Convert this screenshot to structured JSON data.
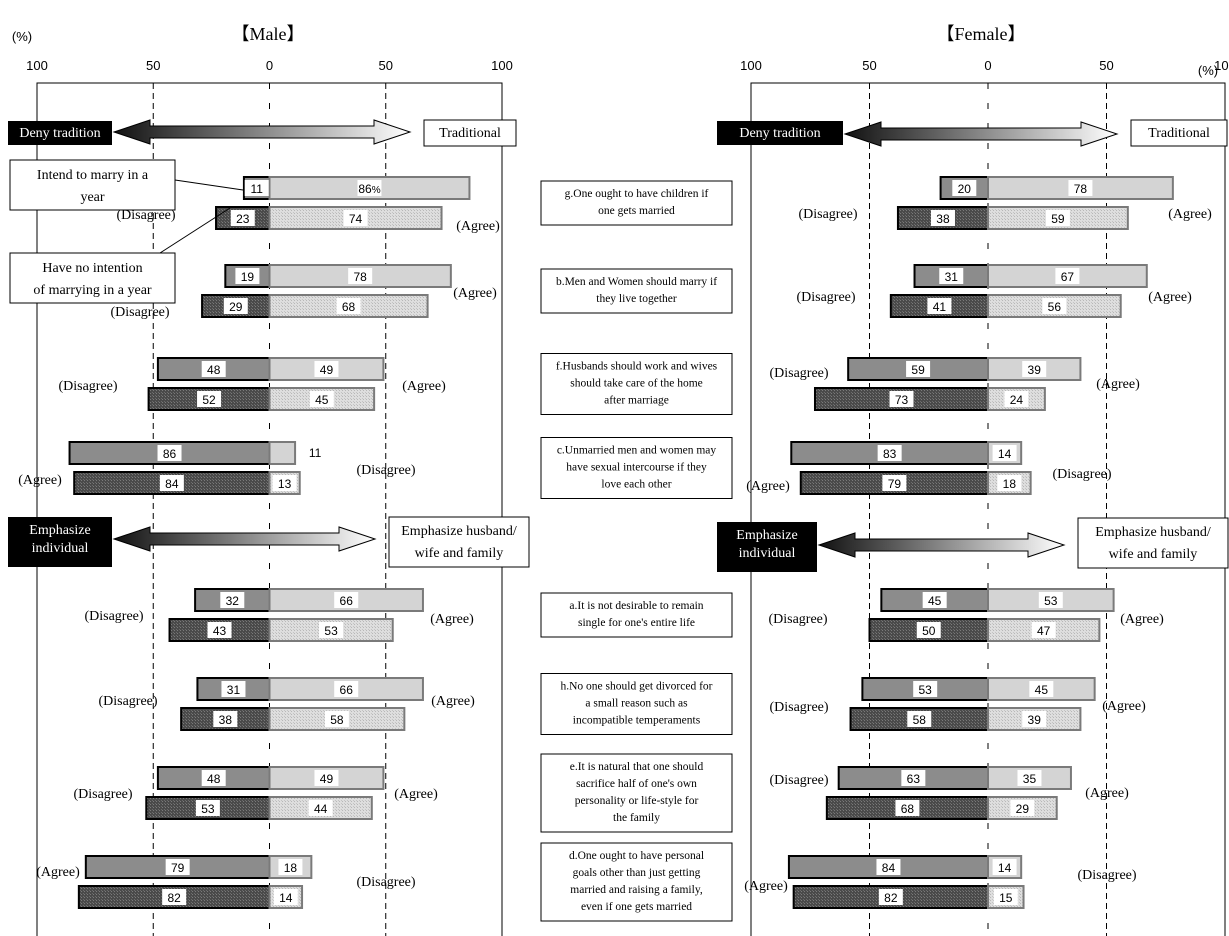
{
  "chart_data": {
    "type": "bar",
    "orientation": "horizontal-diverging",
    "unit_label": "(%)",
    "ticks": [
      "100",
      "50",
      "0",
      "50",
      "100"
    ],
    "series": [
      {
        "name": "Intend to marry in a year"
      },
      {
        "name": "Have no intention of marrying in a year"
      }
    ],
    "panels": [
      {
        "title": "【Male】",
        "percent_suffix_first": "%"
      },
      {
        "title": "【Female】"
      }
    ],
    "legend_left_label": "Deny tradition",
    "legend_right_label": "Traditional",
    "legend2_left_label": "Emphasize individual",
    "legend2_right_label": "Emphasize husband/ wife and family",
    "items": [
      {
        "label": "g.One ought to have children if one gets married",
        "left_word": "(Disagree)",
        "right_word": "(Agree)",
        "male": [
          {
            "neg": 11,
            "pos": 86
          },
          {
            "neg": 23,
            "pos": 74
          }
        ],
        "female": [
          {
            "neg": 20,
            "pos": 78
          },
          {
            "neg": 38,
            "pos": 59
          }
        ]
      },
      {
        "label": "b.Men and Women should marry if they live together",
        "left_word": "(Disagree)",
        "right_word": "(Agree)",
        "male": [
          {
            "neg": 19,
            "pos": 78
          },
          {
            "neg": 29,
            "pos": 68
          }
        ],
        "female": [
          {
            "neg": 31,
            "pos": 67
          },
          {
            "neg": 41,
            "pos": 56
          }
        ]
      },
      {
        "label": "f.Husbands should work and wives should take care of the home after marriage",
        "left_word": "(Disagree)",
        "right_word": "(Agree)",
        "male": [
          {
            "neg": 48,
            "pos": 49
          },
          {
            "neg": 52,
            "pos": 45
          }
        ],
        "female": [
          {
            "neg": 59,
            "pos": 39
          },
          {
            "neg": 73,
            "pos": 24
          }
        ]
      },
      {
        "label": "c.Unmarried men and women may have sexual intercourse if they love each other",
        "left_word": "(Agree)",
        "right_word": "(Disagree)",
        "male": [
          {
            "neg": 86,
            "pos": 11
          },
          {
            "neg": 84,
            "pos": 13
          }
        ],
        "female": [
          {
            "neg": 83,
            "pos": 14
          },
          {
            "neg": 79,
            "pos": 18
          }
        ]
      },
      {
        "label": "a.It is not desirable to remain single for one's entire life",
        "left_word": "(Disagree)",
        "right_word": "(Agree)",
        "male": [
          {
            "neg": 32,
            "pos": 66
          },
          {
            "neg": 43,
            "pos": 53
          }
        ],
        "female": [
          {
            "neg": 45,
            "pos": 53
          },
          {
            "neg": 50,
            "pos": 47
          }
        ]
      },
      {
        "label": "h.No one should get divorced for a small reason such as incompatible temperaments",
        "left_word": "(Disagree)",
        "right_word": "(Agree)",
        "male": [
          {
            "neg": 31,
            "pos": 66
          },
          {
            "neg": 38,
            "pos": 58
          }
        ],
        "female": [
          {
            "neg": 53,
            "pos": 45
          },
          {
            "neg": 58,
            "pos": 39
          }
        ]
      },
      {
        "label": "e.It is natural that one should sacrifice half of one's own personality or life-style for the family",
        "left_word": "(Disagree)",
        "right_word": "(Agree)",
        "male": [
          {
            "neg": 48,
            "pos": 49
          },
          {
            "neg": 53,
            "pos": 44
          }
        ],
        "female": [
          {
            "neg": 63,
            "pos": 35
          },
          {
            "neg": 68,
            "pos": 29
          }
        ]
      },
      {
        "label": "d.One ought to have personal goals other than just getting married and raising a family, even if one gets married",
        "left_word": "(Agree)",
        "right_word": "(Disagree)",
        "male": [
          {
            "neg": 79,
            "pos": 18
          },
          {
            "neg": 82,
            "pos": 14
          }
        ],
        "female": [
          {
            "neg": 84,
            "pos": 14
          },
          {
            "neg": 82,
            "pos": 15
          }
        ]
      }
    ],
    "colors": {
      "series1_neg": "#8c8c8c",
      "series2_neg": "#555555",
      "series1_pos": "#d4d4d4",
      "series2_pos": "#dcdcdc",
      "legend_dark": "#000000"
    }
  }
}
